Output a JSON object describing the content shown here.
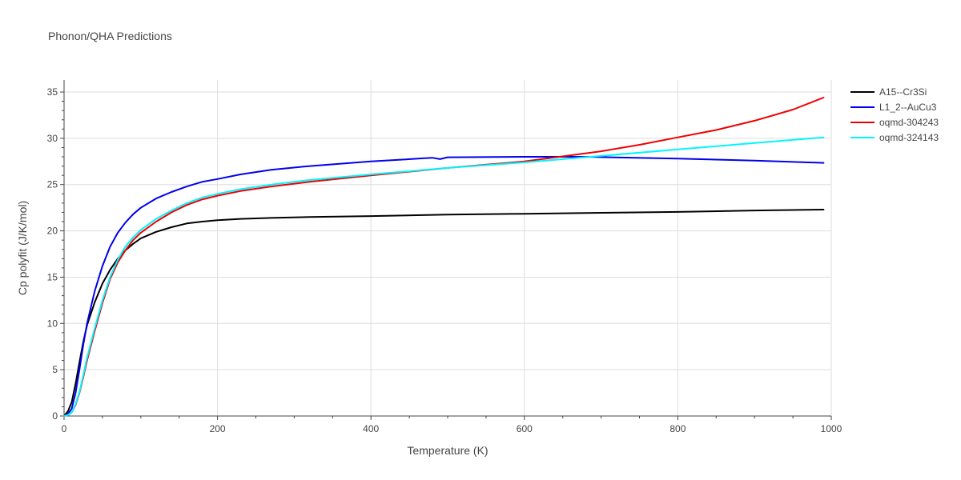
{
  "chart_data": {
    "type": "line",
    "title": "Phonon/QHA Predictions",
    "xlabel": "Temperature (K)",
    "ylabel": "Cp polyfit (J/K/mol)",
    "xlim": [
      0,
      1000
    ],
    "ylim": [
      0,
      36.3
    ],
    "xticks": [
      0,
      200,
      400,
      600,
      800,
      1000
    ],
    "yticks": [
      0,
      5,
      10,
      15,
      20,
      25,
      30,
      35
    ],
    "grid": true,
    "legend_position": "top-right",
    "series": [
      {
        "name": "A15--Cr3Si",
        "color": "#000000",
        "x": [
          0,
          5,
          10,
          15,
          20,
          25,
          30,
          40,
          50,
          60,
          70,
          80,
          90,
          100,
          120,
          140,
          160,
          180,
          200,
          230,
          270,
          320,
          400,
          500,
          600,
          700,
          800,
          900,
          990
        ],
        "y": [
          0,
          0.5,
          1.5,
          3.5,
          5.8,
          8.0,
          9.8,
          12.3,
          14.3,
          15.8,
          17.0,
          17.9,
          18.6,
          19.2,
          19.9,
          20.4,
          20.8,
          21.0,
          21.15,
          21.3,
          21.4,
          21.5,
          21.6,
          21.75,
          21.85,
          21.95,
          22.05,
          22.2,
          22.3
        ]
      },
      {
        "name": "L1_2--AuCu3",
        "color": "#0000ee",
        "x": [
          0,
          5,
          10,
          15,
          20,
          25,
          30,
          40,
          50,
          60,
          70,
          80,
          90,
          100,
          120,
          140,
          160,
          180,
          200,
          230,
          270,
          320,
          400,
          470,
          480,
          490,
          500,
          600,
          680,
          800,
          900,
          990
        ],
        "y": [
          0,
          0.2,
          0.8,
          2.5,
          5.0,
          7.7,
          10.0,
          13.5,
          16.2,
          18.3,
          19.8,
          20.9,
          21.8,
          22.5,
          23.5,
          24.2,
          24.8,
          25.3,
          25.6,
          26.1,
          26.6,
          27.0,
          27.5,
          27.85,
          27.9,
          27.75,
          27.95,
          28.0,
          28.0,
          27.8,
          27.6,
          27.35
        ]
      },
      {
        "name": "oqmd-304243",
        "color": "#ee0000",
        "x": [
          0,
          5,
          10,
          15,
          20,
          25,
          30,
          40,
          50,
          60,
          70,
          80,
          90,
          100,
          120,
          140,
          160,
          180,
          200,
          230,
          270,
          320,
          400,
          500,
          600,
          700,
          750,
          800,
          850,
          900,
          950,
          990
        ],
        "y": [
          0,
          0.1,
          0.4,
          1.2,
          2.5,
          4.2,
          6.0,
          9.2,
          12.2,
          14.8,
          16.6,
          17.9,
          19.0,
          19.8,
          21.0,
          22.0,
          22.8,
          23.4,
          23.8,
          24.3,
          24.8,
          25.3,
          26.0,
          26.8,
          27.5,
          28.6,
          29.3,
          30.1,
          30.9,
          31.9,
          33.1,
          34.4
        ]
      },
      {
        "name": "oqmd-324143",
        "color": "#00f5ff",
        "x": [
          0,
          5,
          10,
          15,
          20,
          25,
          30,
          40,
          50,
          60,
          70,
          80,
          90,
          100,
          120,
          140,
          160,
          180,
          200,
          230,
          270,
          320,
          400,
          500,
          600,
          700,
          800,
          900,
          990
        ],
        "y": [
          0,
          0.1,
          0.4,
          1.3,
          2.6,
          4.4,
          6.3,
          9.5,
          12.5,
          15.0,
          16.9,
          18.3,
          19.3,
          20.1,
          21.3,
          22.2,
          23.0,
          23.6,
          24.0,
          24.5,
          25.0,
          25.5,
          26.1,
          26.8,
          27.4,
          28.1,
          28.8,
          29.5,
          30.1
        ]
      }
    ]
  }
}
